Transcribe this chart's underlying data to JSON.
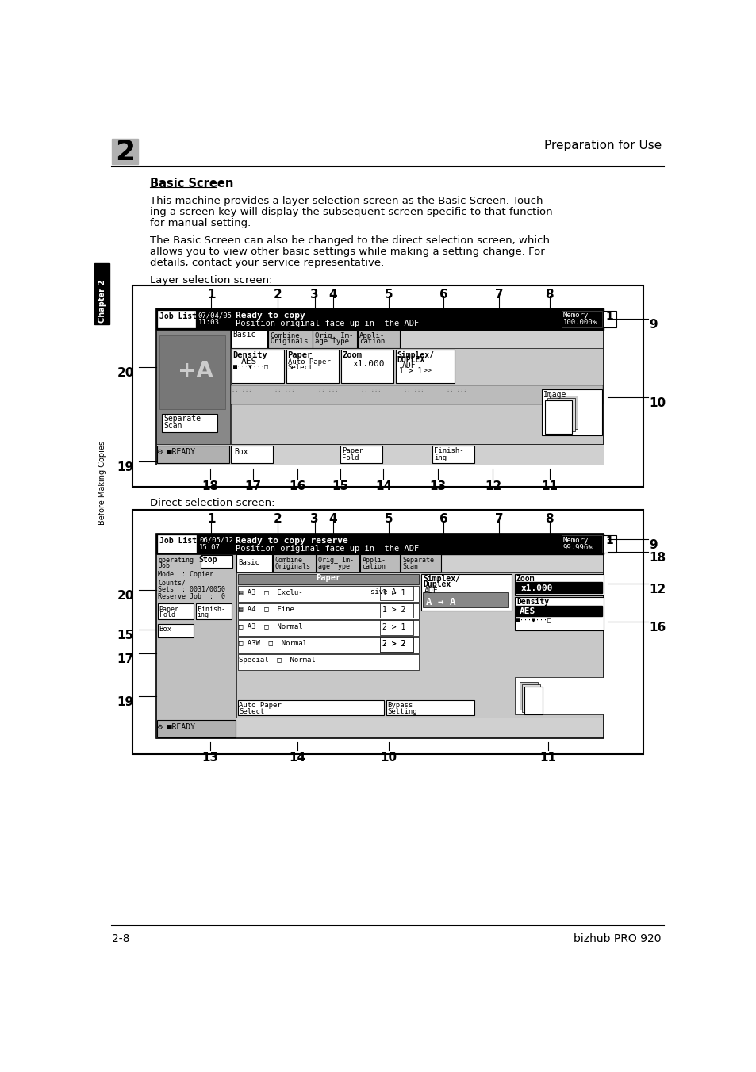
{
  "page_num_left": "2-8",
  "page_num_right": "bizhub PRO 920",
  "chapter_num": "2",
  "header_right": "Preparation for Use",
  "chapter_tab": "Chapter 2",
  "side_text": "Before Making Copies",
  "title": "Basic Screen",
  "body1_line1": "This machine provides a layer selection screen as the Basic Screen. Touch-",
  "body1_line2": "ing a screen key will display the subsequent screen specific to that function",
  "body1_line3": "for manual setting.",
  "body2_line1": "The Basic Screen can also be changed to the direct selection screen, which",
  "body2_line2": "allows you to view other basic settings while making a setting change. For",
  "body2_line3": "details, contact your service representative.",
  "layer_label": "Layer selection screen:",
  "direct_label": "Direct selection screen:",
  "bg": "#ffffff",
  "black": "#000000",
  "gray_light": "#cccccc",
  "gray_med": "#aaaaaa",
  "gray_dark": "#888888",
  "gray_box": "#e0e0e0"
}
